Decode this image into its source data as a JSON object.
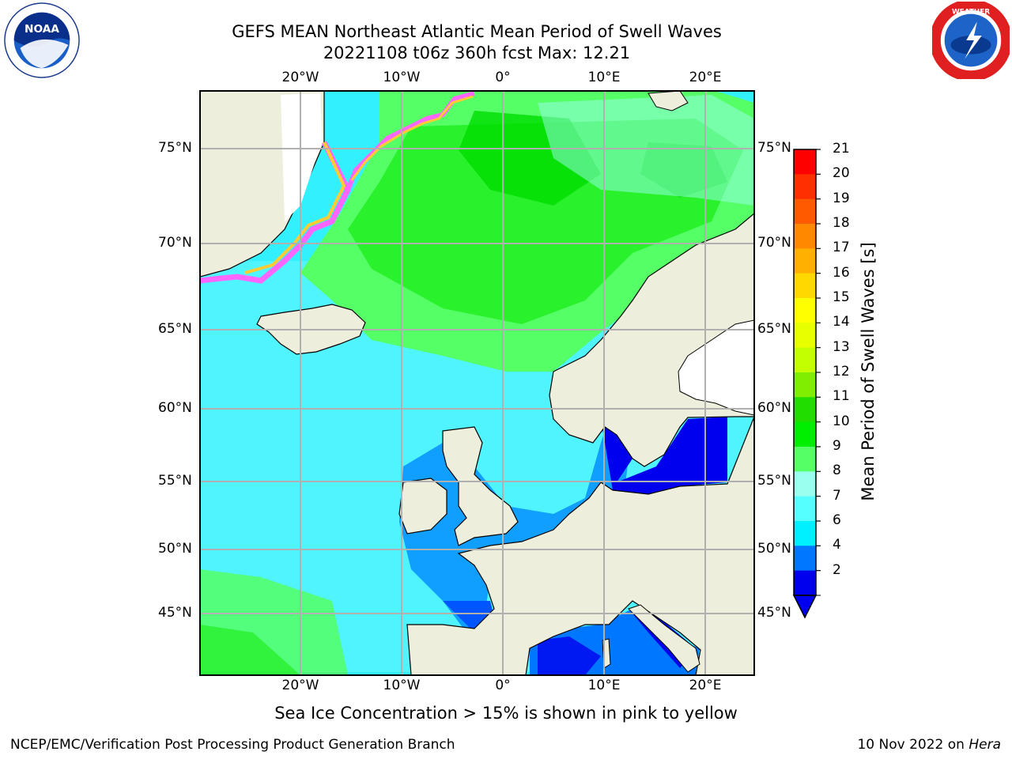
{
  "header": {
    "title_line1": "GEFS MEAN Northeast Atlantic Mean Period of Swell Waves",
    "title_line2": "20221108 t06z 360h fcst   Max: 12.21"
  },
  "logos": {
    "left": "noaa-logo",
    "right": "nws-logo"
  },
  "map": {
    "lon_labels": [
      "20°W",
      "10°W",
      "0°",
      "10°E",
      "20°E"
    ],
    "lat_labels": [
      "75°N",
      "70°N",
      "65°N",
      "60°N",
      "55°N",
      "50°N",
      "45°N"
    ],
    "ocean_color": "#33f0ff",
    "land_color": "#eeeedd"
  },
  "colorbar": {
    "label": "Mean Period of Swell Waves [s]",
    "ticks": [
      "21",
      "20",
      "19",
      "18",
      "17",
      "16",
      "15",
      "14",
      "13",
      "12",
      "11",
      "10",
      "9",
      "8",
      "7",
      "6",
      "4",
      "2"
    ],
    "colors": [
      "#ff0000",
      "#ff2f00",
      "#ff5a00",
      "#ff8800",
      "#ffb000",
      "#ffd800",
      "#ffff00",
      "#e8ff00",
      "#c4ff00",
      "#7fee00",
      "#22dd00",
      "#00ee00",
      "#55ff66",
      "#99ffee",
      "#55ffff",
      "#00f0ff",
      "#0077ff",
      "#0000ee"
    ]
  },
  "caption": "Sea Ice Concentration > 15% is shown in pink to yellow",
  "footer": {
    "left": "NCEP/EMC/Verification Post Processing Product Generation Branch",
    "right_prefix": "10 Nov 2022 on ",
    "right_host": "Hera"
  }
}
